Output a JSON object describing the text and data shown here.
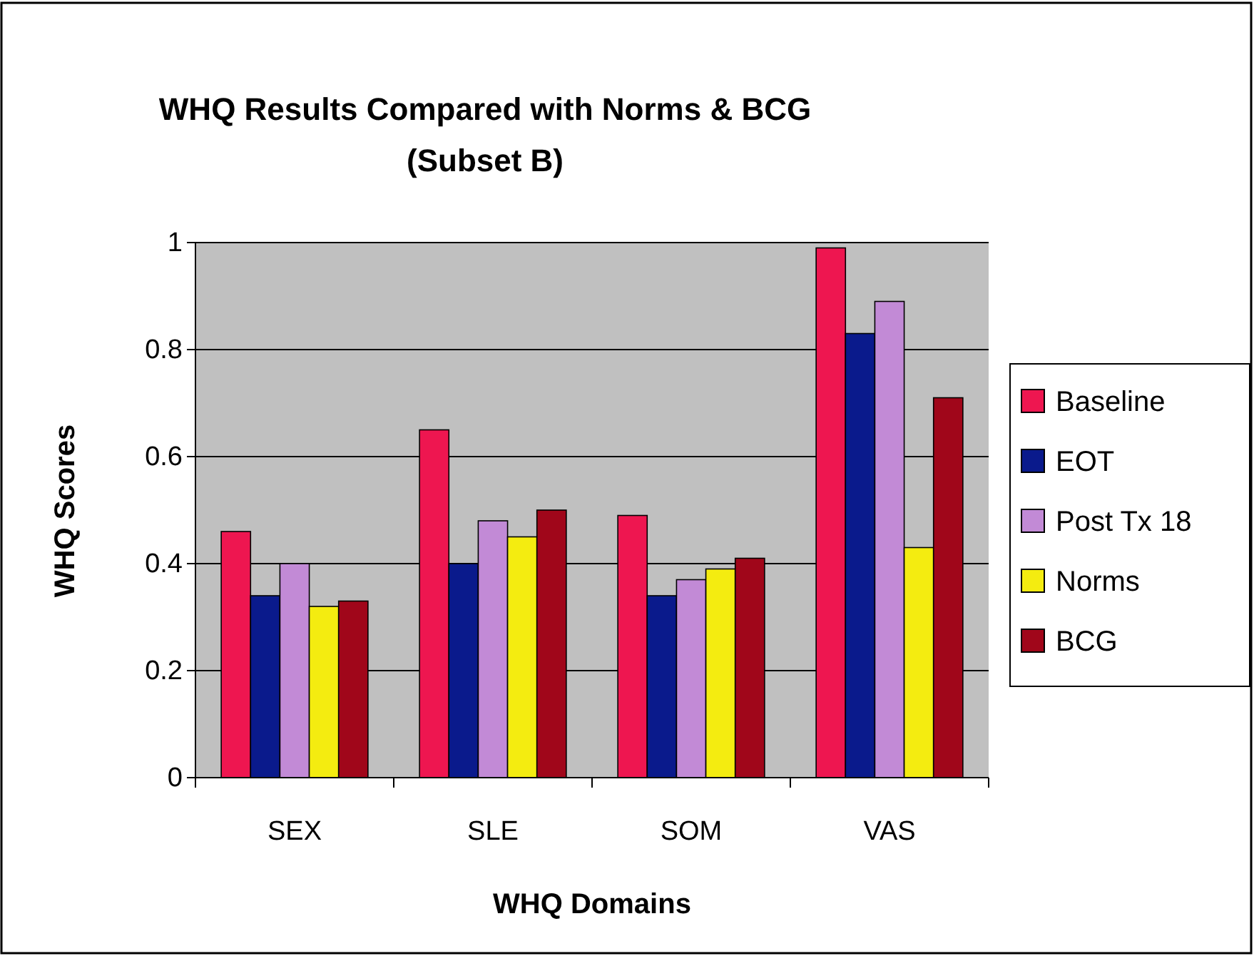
{
  "chart_data": {
    "type": "bar",
    "title": "WHQ Results Compared with Norms & BCG",
    "subtitle": "(Subset B)",
    "xlabel": "WHQ Domains",
    "ylabel": "WHQ Scores",
    "categories": [
      "SEX",
      "SLE",
      "SOM",
      "VAS"
    ],
    "series": [
      {
        "name": "Baseline",
        "color": "#ee1650",
        "values": [
          0.46,
          0.65,
          0.49,
          0.99
        ]
      },
      {
        "name": "EOT",
        "color": "#0a1a8c",
        "values": [
          0.34,
          0.4,
          0.34,
          0.83
        ]
      },
      {
        "name": "Post Tx 18",
        "color": "#c28ad6",
        "values": [
          0.4,
          0.48,
          0.37,
          0.89
        ]
      },
      {
        "name": "Norms",
        "color": "#f4ec10",
        "values": [
          0.32,
          0.45,
          0.39,
          0.43
        ]
      },
      {
        "name": "BCG",
        "color": "#a0061a",
        "values": [
          0.33,
          0.5,
          0.41,
          0.71
        ]
      }
    ],
    "ylim": [
      0,
      1
    ],
    "yticks": [
      0,
      0.2,
      0.4,
      0.6,
      0.8,
      1
    ],
    "grid": "y",
    "legend": "right"
  }
}
